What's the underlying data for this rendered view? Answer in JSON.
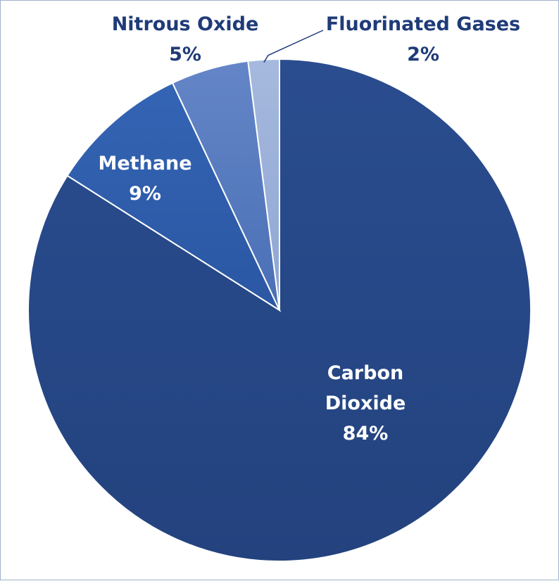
{
  "chart_data": {
    "type": "pie",
    "title": "",
    "start_angle_deg": 0,
    "direction": "clockwise",
    "slices": [
      {
        "name": "Carbon",
        "name2": "Dioxide",
        "value": 84,
        "pct_label": "84%",
        "color": "#23427e",
        "color_light": "#2a4d8f"
      },
      {
        "name": "Methane",
        "name2": "",
        "value": 9,
        "pct_label": "9%",
        "color": "#2b57a3",
        "color_light": "#3464b4"
      },
      {
        "name": "Nitrous Oxide",
        "name2": "",
        "value": 5,
        "pct_label": "5%",
        "color": "#4a6fb5",
        "color_light": "#6486c8"
      },
      {
        "name": "Fluorinated Gases",
        "name2": "",
        "value": 2,
        "pct_label": "2%",
        "color": "#8fa6d3",
        "color_light": "#a6b9de"
      }
    ],
    "grid": false,
    "legend": "none"
  },
  "colors": {
    "separator": "#ffffff",
    "outside_label": "#1f3b78",
    "inside_label": "#ffffff",
    "frame_border": "#9fb2c8"
  }
}
